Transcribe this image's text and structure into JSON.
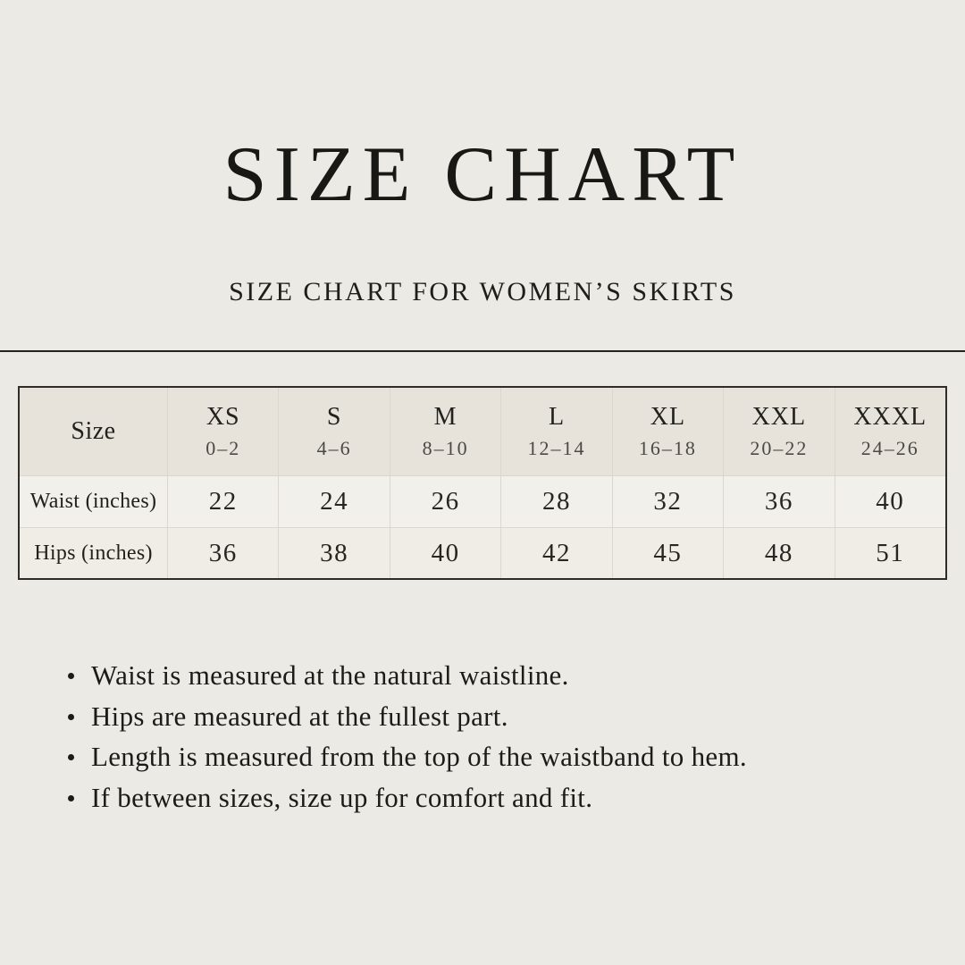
{
  "page": {
    "title": "SIZE CHART",
    "subtitle": "SIZE CHART FOR WOMEN’S SKIRTS"
  },
  "table": {
    "corner_label": "Size",
    "columns": [
      {
        "size": "XS",
        "range": "0–2"
      },
      {
        "size": "S",
        "range": "4–6"
      },
      {
        "size": "M",
        "range": "8–10"
      },
      {
        "size": "L",
        "range": "12–14"
      },
      {
        "size": "XL",
        "range": "16–18"
      },
      {
        "size": "XXL",
        "range": "20–22"
      },
      {
        "size": "XXXL",
        "range": "24–26"
      }
    ],
    "rows": [
      {
        "label": "Waist (inches)",
        "values": [
          "22",
          "24",
          "26",
          "28",
          "32",
          "36",
          "40"
        ]
      },
      {
        "label": "Hips (inches)",
        "values": [
          "36",
          "38",
          "40",
          "42",
          "45",
          "48",
          "51"
        ]
      }
    ]
  },
  "notes": [
    "Waist is measured at the natural waistline.",
    "Hips are measured at the fullest part.",
    "Length is measured from the top of the waistband to hem.",
    "If between sizes, size up for comfort and fit."
  ],
  "colors": {
    "background": "#ECEAE4",
    "text": "#1B1B19",
    "table_header_bg": "#E7E3DB",
    "table_row1_bg": "#F2F0EA",
    "table_row2_bg": "#EFEDE6",
    "table_border": "#2E2D2A",
    "table_gridline": "#DAD7CF",
    "divider": "#23231F"
  }
}
